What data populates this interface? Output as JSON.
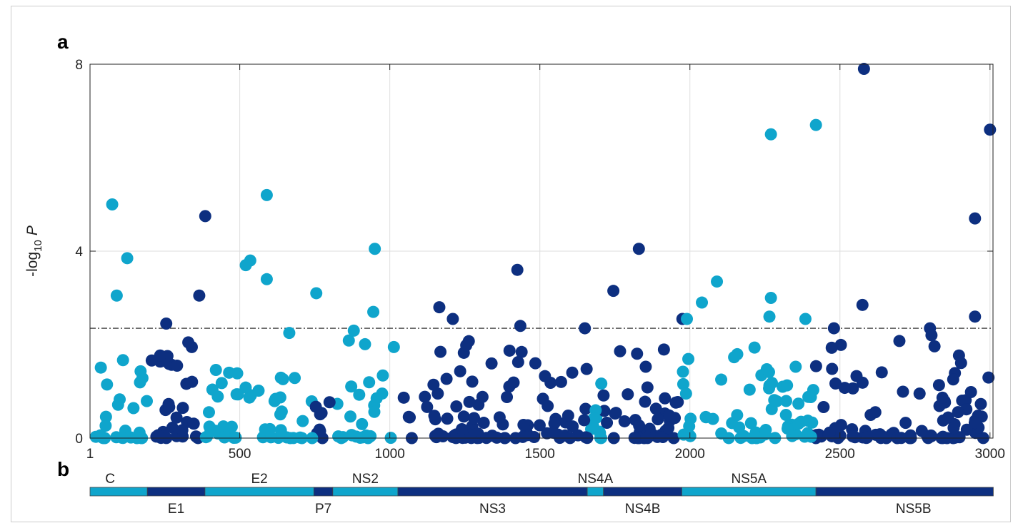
{
  "panels": {
    "a": "a",
    "b": "b"
  },
  "colors": {
    "light": "#0fa5cc",
    "dark": "#0d2f80"
  },
  "chart_data": {
    "type": "scatter",
    "title": "",
    "xlabel": "",
    "ylabel": {
      "prefix": "-log",
      "sub": "10",
      "var": "P"
    },
    "xlim": [
      1,
      3010
    ],
    "ylim": [
      0,
      8
    ],
    "xticks": [
      1,
      500,
      1000,
      1500,
      2000,
      2500,
      3000
    ],
    "yticks": [
      0,
      4,
      8
    ],
    "grid": true,
    "threshold": 2.35,
    "notable_points": [
      {
        "x": 2580,
        "y": 7.9,
        "color": "dark"
      },
      {
        "x": 2420,
        "y": 6.7,
        "color": "light"
      },
      {
        "x": 2270,
        "y": 6.5,
        "color": "light"
      },
      {
        "x": 3000,
        "y": 6.6,
        "color": "dark"
      },
      {
        "x": 590,
        "y": 5.2,
        "color": "light"
      },
      {
        "x": 75,
        "y": 5.0,
        "color": "light"
      },
      {
        "x": 385,
        "y": 4.75,
        "color": "dark"
      },
      {
        "x": 2950,
        "y": 4.7,
        "color": "dark"
      },
      {
        "x": 950,
        "y": 4.05,
        "color": "light"
      },
      {
        "x": 1830,
        "y": 4.05,
        "color": "dark"
      },
      {
        "x": 125,
        "y": 3.85,
        "color": "light"
      },
      {
        "x": 535,
        "y": 3.8,
        "color": "light"
      },
      {
        "x": 520,
        "y": 3.7,
        "color": "light"
      },
      {
        "x": 1425,
        "y": 3.6,
        "color": "dark"
      },
      {
        "x": 590,
        "y": 3.4,
        "color": "light"
      },
      {
        "x": 2090,
        "y": 3.35,
        "color": "light"
      },
      {
        "x": 1745,
        "y": 3.15,
        "color": "dark"
      },
      {
        "x": 90,
        "y": 3.05,
        "color": "light"
      },
      {
        "x": 365,
        "y": 3.05,
        "color": "dark"
      },
      {
        "x": 755,
        "y": 3.1,
        "color": "light"
      },
      {
        "x": 2270,
        "y": 3.0,
        "color": "light"
      },
      {
        "x": 2575,
        "y": 2.85,
        "color": "dark"
      },
      {
        "x": 2040,
        "y": 2.9,
        "color": "light"
      },
      {
        "x": 1165,
        "y": 2.8,
        "color": "dark"
      },
      {
        "x": 945,
        "y": 2.7,
        "color": "light"
      },
      {
        "x": 2950,
        "y": 2.6,
        "color": "dark"
      },
      {
        "x": 2265,
        "y": 2.6,
        "color": "light"
      },
      {
        "x": 1210,
        "y": 2.55,
        "color": "dark"
      },
      {
        "x": 1975,
        "y": 2.55,
        "color": "dark"
      },
      {
        "x": 1990,
        "y": 2.55,
        "color": "light"
      },
      {
        "x": 2385,
        "y": 2.55,
        "color": "light"
      },
      {
        "x": 255,
        "y": 2.45,
        "color": "dark"
      },
      {
        "x": 1435,
        "y": 2.4,
        "color": "dark"
      },
      {
        "x": 1650,
        "y": 2.35,
        "color": "dark"
      },
      {
        "x": 2480,
        "y": 2.35,
        "color": "dark"
      },
      {
        "x": 2800,
        "y": 2.35,
        "color": "dark"
      },
      {
        "x": 2805,
        "y": 2.2,
        "color": "dark"
      },
      {
        "x": 880,
        "y": 2.3,
        "color": "light"
      },
      {
        "x": 665,
        "y": 2.25,
        "color": "light"
      }
    ],
    "threshold_style": "dash-dot"
  },
  "genes": {
    "segments": [
      {
        "name": "C",
        "start": 1,
        "end": 191,
        "color": "light",
        "label_pos": "above"
      },
      {
        "name": "E1",
        "start": 192,
        "end": 383,
        "color": "dark",
        "label_pos": "below"
      },
      {
        "name": "E2",
        "start": 384,
        "end": 746,
        "color": "light",
        "label_pos": "above"
      },
      {
        "name": "P7",
        "start": 747,
        "end": 809,
        "color": "dark",
        "label_pos": "below"
      },
      {
        "name": "NS2",
        "start": 810,
        "end": 1026,
        "color": "light",
        "label_pos": "above"
      },
      {
        "name": "NS3",
        "start": 1027,
        "end": 1657,
        "color": "dark",
        "label_pos": "below"
      },
      {
        "name": "NS4A",
        "start": 1658,
        "end": 1711,
        "color": "light",
        "label_pos": "above"
      },
      {
        "name": "NS4B",
        "start": 1712,
        "end": 1972,
        "color": "dark",
        "label_pos": "below"
      },
      {
        "name": "NS5A",
        "start": 1973,
        "end": 2419,
        "color": "light",
        "label_pos": "above"
      },
      {
        "name": "NS5B",
        "start": 2420,
        "end": 3010,
        "color": "dark",
        "label_pos": "below"
      }
    ]
  }
}
